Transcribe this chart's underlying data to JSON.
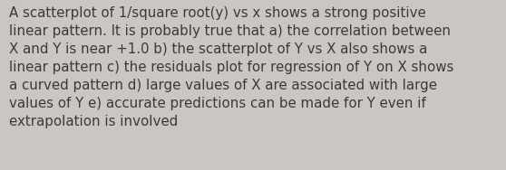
{
  "text": "A scatterplot of 1/square root(y) vs x shows a strong positive\nlinear pattern. It is probably true that a) the correlation between\nX and Y is near +1.0 b) the scatterplot of Y vs X also shows a\nlinear pattern c) the residuals plot for regression of Y on X shows\na curved pattern d) large values of X are associated with large\nvalues of Y e) accurate predictions can be made for Y even if\nextrapolation is involved",
  "background_color": "#cac7c2",
  "text_color": "#3a3a3a",
  "font_size": 10.8,
  "fig_width": 5.58,
  "fig_height": 1.88
}
